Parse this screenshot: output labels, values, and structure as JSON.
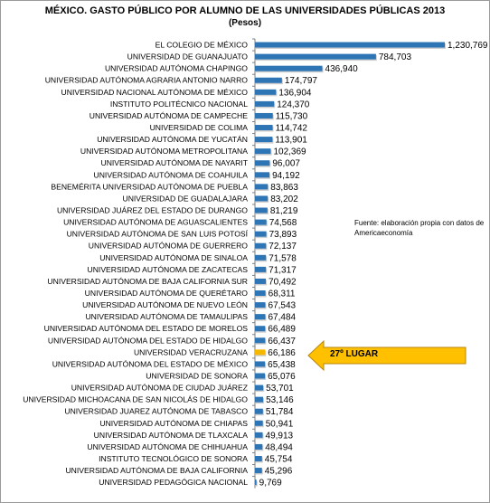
{
  "chart_data": {
    "type": "bar",
    "orientation": "horizontal",
    "title": "MÉXICO. GASTO PÚBLICO POR ALUMNO DE LAS UNIVERSIDADES PÚBLICAS 2013",
    "subtitle": "(Pesos)",
    "categories": [
      "EL COLEGIO DE MÉXICO",
      "UNIVERSIDAD DE GUANAJUATO",
      "UNIVERSIDAD AUTÓNOMA CHAPINGO",
      "UNIVERSIDAD AUTÓNOMA AGRARIA ANTONIO NARRO",
      "UNIVERSIDAD NACIONAL AUTÓNOMA DE MÉXICO",
      "INSTITUTO POLITÉCNICO NACIONAL",
      "UNIVERSIDAD AUTÓNOMA DE CAMPECHE",
      "UNIVERSIDAD DE COLIMA",
      "UNIVERSIDAD AUTÓNOMA DE YUCATÁN",
      "UNIVERSIDAD AUTÓNOMA METROPOLITANA",
      "UNIVERSIDAD AUTÓNOMA DE NAYARIT",
      "UNIVERSIDAD AUTÓNOMA DE COAHUILA",
      "BENEMÉRITA UNIVERSIDAD AUTÓNOMA DE PUEBLA",
      "UNIVERSIDAD DE GUADALAJARA",
      "UNIVERSIDAD JUÁREZ DEL ESTADO DE DURANGO",
      "UNIVERSIDAD AUTÓNOMA DE AGUASCALIENTES",
      "UNIVERSIDAD AUTÓNOMA DE SAN LUIS POTOSÍ",
      "UNIVERSIDAD AUTÓNOMA DE GUERRERO",
      "UNIVERSIDAD AUTÓNOMA DE SINALOA",
      "UNIVERSIDAD AUTÓNOMA DE ZACATECAS",
      "UNIVERSIDAD AUTÓNOMA DE BAJA CALIFORNIA SUR",
      "UNIVERSIDAD AUTÓNOMA DE QUERÉTARO",
      "UNIVERSIDAD AUTÓNOMA DE NUEVO LEÓN",
      "UNIVERSIDAD AUTÓNOMA DE TAMAULIPAS",
      "UNIVERSIDAD AUTÓNOMA DEL ESTADO DE MORELOS",
      "UNIVERSIDAD AUTÓNOMA DEL ESTADO DE HIDALGO",
      "UNIVERSIDAD VERACRUZANA",
      "UNIVERSIDAD AUTÓNOMA DEL ESTADO DE MÉXICO",
      "UNIVERSIDAD DE SONORA",
      "UNIVERSIDAD AUTÓNOMA DE CIUDAD JUÁREZ",
      "UNIVERSIDAD MICHOACANA DE SAN NICOLÁS DE HIDALGO",
      "UNIVERSIDAD JUAREZ AUTÓNOMA DE TABASCO",
      "UNIVERSIDAD AUTÓNOMA DE CHIAPAS",
      "UNIVERSIDAD AUTÓNOMA DE TLAXCALA",
      "UNIVERSIDAD AUTÓNOMA DE CHIHUAHUA",
      "INSTITUTO TECNOLÓGICO DE SONORA",
      "UNIVERSIDAD AUTÓNOMA DE BAJA CALIFORNIA",
      "UNIVERSIDAD PEDAGÓGICA NACIONAL"
    ],
    "values": [
      1230769,
      784703,
      436940,
      174797,
      136904,
      124370,
      115730,
      114742,
      113901,
      102369,
      96007,
      94192,
      83863,
      83202,
      81219,
      74568,
      73893,
      72137,
      71578,
      71317,
      70492,
      68311,
      67543,
      67484,
      66489,
      66437,
      66186,
      65438,
      65076,
      53701,
      53146,
      51784,
      50941,
      49913,
      48494,
      45754,
      45296,
      9769
    ],
    "value_labels": [
      "1,230,769",
      "784,703",
      "436,940",
      "174,797",
      "136,904",
      "124,370",
      "115,730",
      "114,742",
      "113,901",
      "102,369",
      "96,007",
      "94,192",
      "83,863",
      "83,202",
      "81,219",
      "74,568",
      "73,893",
      "72,137",
      "71,578",
      "71,317",
      "70,492",
      "68,311",
      "67,543",
      "67,484",
      "66,489",
      "66,437",
      "66,186",
      "65,438",
      "65,076",
      "53,701",
      "53,146",
      "51,784",
      "50,941",
      "49,913",
      "48,494",
      "45,754",
      "45,296",
      "9,769"
    ],
    "highlight_index": 26,
    "bar_color": "#2e75b6",
    "highlight_color": "#f5b800",
    "xlim": [
      0,
      1230769
    ],
    "grid": false,
    "annotation": "Fuente: elaboración propia con datos de Americaeconomía",
    "callout_label": "27º LUGAR",
    "callout_color": "#ffc000"
  }
}
